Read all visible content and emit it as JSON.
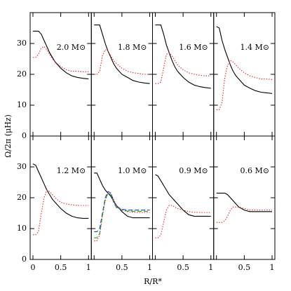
{
  "ylabel": "Ω/2π (μHz)",
  "xlabel": "R/R*",
  "chart_data": [
    {
      "type": "line",
      "title": "2.0 M⊙",
      "xlim": [
        -0.05,
        1.05
      ],
      "ylim": [
        0,
        40
      ],
      "xticks": [
        0,
        0.5,
        1
      ],
      "yticks": [
        0,
        10,
        20,
        30
      ],
      "x": [
        0,
        0.05,
        0.1,
        0.15,
        0.2,
        0.25,
        0.3,
        0.35,
        0.4,
        0.5,
        0.6,
        0.7,
        0.8,
        0.9,
        1
      ],
      "series": [
        {
          "color": "#000000",
          "dash": "solid",
          "values": [
            34,
            34,
            34,
            33,
            31,
            29,
            27,
            25.5,
            24,
            22,
            20.5,
            19.5,
            19,
            18.7,
            18.5
          ]
        },
        {
          "color": "#e8262a",
          "dash": "dotted",
          "values": [
            25.5,
            25.5,
            26.5,
            28.5,
            29,
            28,
            26.5,
            25,
            24,
            22.5,
            21.5,
            21,
            21,
            20.8,
            20.8
          ]
        }
      ]
    },
    {
      "type": "line",
      "title": "1.8 M⊙",
      "xlim": [
        -0.05,
        1.05
      ],
      "ylim": [
        0,
        40
      ],
      "xticks": [
        0,
        0.5,
        1
      ],
      "yticks": [
        0,
        10,
        20,
        30
      ],
      "x": [
        0,
        0.05,
        0.1,
        0.15,
        0.2,
        0.25,
        0.3,
        0.35,
        0.4,
        0.5,
        0.6,
        0.7,
        0.8,
        0.9,
        1
      ],
      "series": [
        {
          "color": "#000000",
          "dash": "solid",
          "values": [
            36,
            36,
            36,
            33,
            30,
            27.5,
            25.5,
            23.5,
            22,
            20,
            19,
            18,
            17.5,
            17.2,
            17
          ]
        },
        {
          "color": "#e8262a",
          "dash": "dotted",
          "values": [
            20,
            20,
            21,
            26,
            28,
            27.5,
            26,
            24.5,
            23.5,
            22,
            21,
            20.5,
            20.3,
            20,
            20
          ]
        }
      ]
    },
    {
      "type": "line",
      "title": "1.6 M⊙",
      "xlim": [
        -0.05,
        1.05
      ],
      "ylim": [
        0,
        40
      ],
      "xticks": [
        0,
        0.5,
        1
      ],
      "yticks": [
        0,
        10,
        20,
        30
      ],
      "x": [
        0,
        0.05,
        0.1,
        0.15,
        0.2,
        0.25,
        0.3,
        0.35,
        0.4,
        0.5,
        0.6,
        0.7,
        0.8,
        0.9,
        1
      ],
      "series": [
        {
          "color": "#000000",
          "dash": "solid",
          "values": [
            36,
            36,
            36,
            33,
            29.5,
            27,
            24.5,
            22.5,
            21,
            19,
            17.5,
            16.5,
            16,
            15.7,
            15.5
          ]
        },
        {
          "color": "#e8262a",
          "dash": "dotted",
          "values": [
            17,
            17,
            17.5,
            22,
            26.5,
            27,
            26,
            24.5,
            23,
            21.5,
            20.5,
            20,
            19.7,
            19.5,
            19.5
          ]
        }
      ]
    },
    {
      "type": "line",
      "title": "1.4 M⊙",
      "xlim": [
        -0.05,
        1.05
      ],
      "ylim": [
        0,
        40
      ],
      "xticks": [
        0,
        0.5,
        1
      ],
      "yticks": [
        0,
        10,
        20,
        30
      ],
      "x": [
        0,
        0.05,
        0.1,
        0.15,
        0.2,
        0.25,
        0.3,
        0.35,
        0.4,
        0.5,
        0.6,
        0.7,
        0.8,
        0.9,
        1
      ],
      "series": [
        {
          "color": "#000000",
          "dash": "solid",
          "values": [
            35.5,
            35,
            31,
            28,
            25.5,
            23,
            21,
            19.5,
            18.5,
            16.5,
            15.5,
            14.7,
            14.2,
            14,
            13.8
          ]
        },
        {
          "color": "#e8262a",
          "dash": "dotted",
          "values": [
            8.5,
            8.5,
            11,
            19,
            23,
            24.5,
            24,
            23,
            22,
            20.5,
            19.5,
            19,
            18.5,
            18.5,
            18.3
          ]
        }
      ]
    },
    {
      "type": "line",
      "title": "1.2 M⊙",
      "xlim": [
        -0.05,
        1.05
      ],
      "ylim": [
        0,
        40
      ],
      "xticks": [
        0,
        0.5,
        1
      ],
      "yticks": [
        0,
        10,
        20,
        30
      ],
      "x": [
        0,
        0.05,
        0.1,
        0.15,
        0.2,
        0.25,
        0.3,
        0.35,
        0.4,
        0.5,
        0.6,
        0.7,
        0.8,
        0.9,
        1
      ],
      "series": [
        {
          "color": "#000000",
          "dash": "solid",
          "values": [
            31,
            30.5,
            28.5,
            26.5,
            24.5,
            22.5,
            21,
            19.5,
            18.5,
            16.5,
            15,
            14,
            13.5,
            13.3,
            13.3
          ]
        },
        {
          "color": "#e8262a",
          "dash": "dotted",
          "values": [
            8,
            8,
            9,
            15,
            20,
            22.5,
            22,
            21,
            20,
            18.5,
            18,
            17.7,
            17.5,
            17.5,
            17.5
          ]
        }
      ]
    },
    {
      "type": "line",
      "title": "1.0 M⊙",
      "xlim": [
        -0.05,
        1.05
      ],
      "ylim": [
        0,
        40
      ],
      "xticks": [
        0,
        0.5,
        1
      ],
      "yticks": [
        0,
        10,
        20,
        30
      ],
      "x": [
        0,
        0.05,
        0.1,
        0.15,
        0.2,
        0.25,
        0.3,
        0.35,
        0.4,
        0.5,
        0.6,
        0.7,
        0.8,
        0.9,
        1
      ],
      "series": [
        {
          "color": "#000000",
          "dash": "solid",
          "values": [
            28,
            28,
            26,
            24,
            22.5,
            21.5,
            20.5,
            19,
            17.5,
            15.5,
            14,
            13.5,
            13.5,
            13.5,
            13.5
          ]
        },
        {
          "color": "#e8262a",
          "dash": "dotted",
          "values": [
            6,
            6,
            8,
            14,
            19,
            21.5,
            21.5,
            19.5,
            17.5,
            16,
            15.5,
            15.3,
            15.2,
            15.2,
            15.2
          ]
        },
        {
          "color": "#1f3fd6",
          "dash": "dashed",
          "values": [
            9,
            9,
            10,
            15,
            20,
            22,
            21.5,
            19,
            17,
            16.3,
            16,
            16,
            16,
            16,
            16
          ]
        },
        {
          "color": "#2a9a2a",
          "dash": "dashed",
          "values": [
            7,
            7,
            8.5,
            14.5,
            19.5,
            21.5,
            21,
            18.5,
            16.8,
            16,
            15.7,
            15.6,
            15.6,
            15.6,
            15.6
          ]
        }
      ]
    },
    {
      "type": "line",
      "title": "0.9 M⊙",
      "xlim": [
        -0.05,
        1.05
      ],
      "ylim": [
        0,
        40
      ],
      "xticks": [
        0,
        0.5,
        1
      ],
      "yticks": [
        0,
        10,
        20,
        30
      ],
      "x": [
        0,
        0.05,
        0.1,
        0.15,
        0.2,
        0.25,
        0.3,
        0.35,
        0.4,
        0.5,
        0.6,
        0.7,
        0.8,
        0.9,
        1
      ],
      "series": [
        {
          "color": "#000000",
          "dash": "solid",
          "values": [
            27.5,
            27,
            25.5,
            24,
            22.5,
            21,
            20,
            19,
            18,
            16,
            14.5,
            14,
            14,
            14,
            14
          ]
        },
        {
          "color": "#e8262a",
          "dash": "dotted",
          "values": [
            7,
            7,
            8,
            12,
            16,
            17.5,
            17.5,
            17,
            16.5,
            16,
            15.5,
            15.3,
            15.2,
            15.2,
            15.2
          ]
        }
      ]
    },
    {
      "type": "line",
      "title": "0.6 M⊙",
      "xlim": [
        -0.05,
        1.05
      ],
      "ylim": [
        0,
        40
      ],
      "xticks": [
        0,
        0.5,
        1
      ],
      "yticks": [
        0,
        10,
        20,
        30
      ],
      "x": [
        0,
        0.05,
        0.1,
        0.15,
        0.2,
        0.25,
        0.3,
        0.35,
        0.4,
        0.5,
        0.6,
        0.7,
        0.8,
        0.9,
        1
      ],
      "series": [
        {
          "color": "#000000",
          "dash": "solid",
          "values": [
            21.5,
            21.5,
            21.5,
            21.5,
            21,
            20,
            19,
            18,
            17,
            16,
            15.5,
            15.5,
            15.5,
            15.5,
            15.5
          ]
        },
        {
          "color": "#e8262a",
          "dash": "dotted",
          "values": [
            12,
            12,
            12,
            12.5,
            14,
            16,
            17,
            17,
            17,
            16.5,
            16,
            16,
            16,
            16,
            16
          ]
        }
      ]
    }
  ]
}
